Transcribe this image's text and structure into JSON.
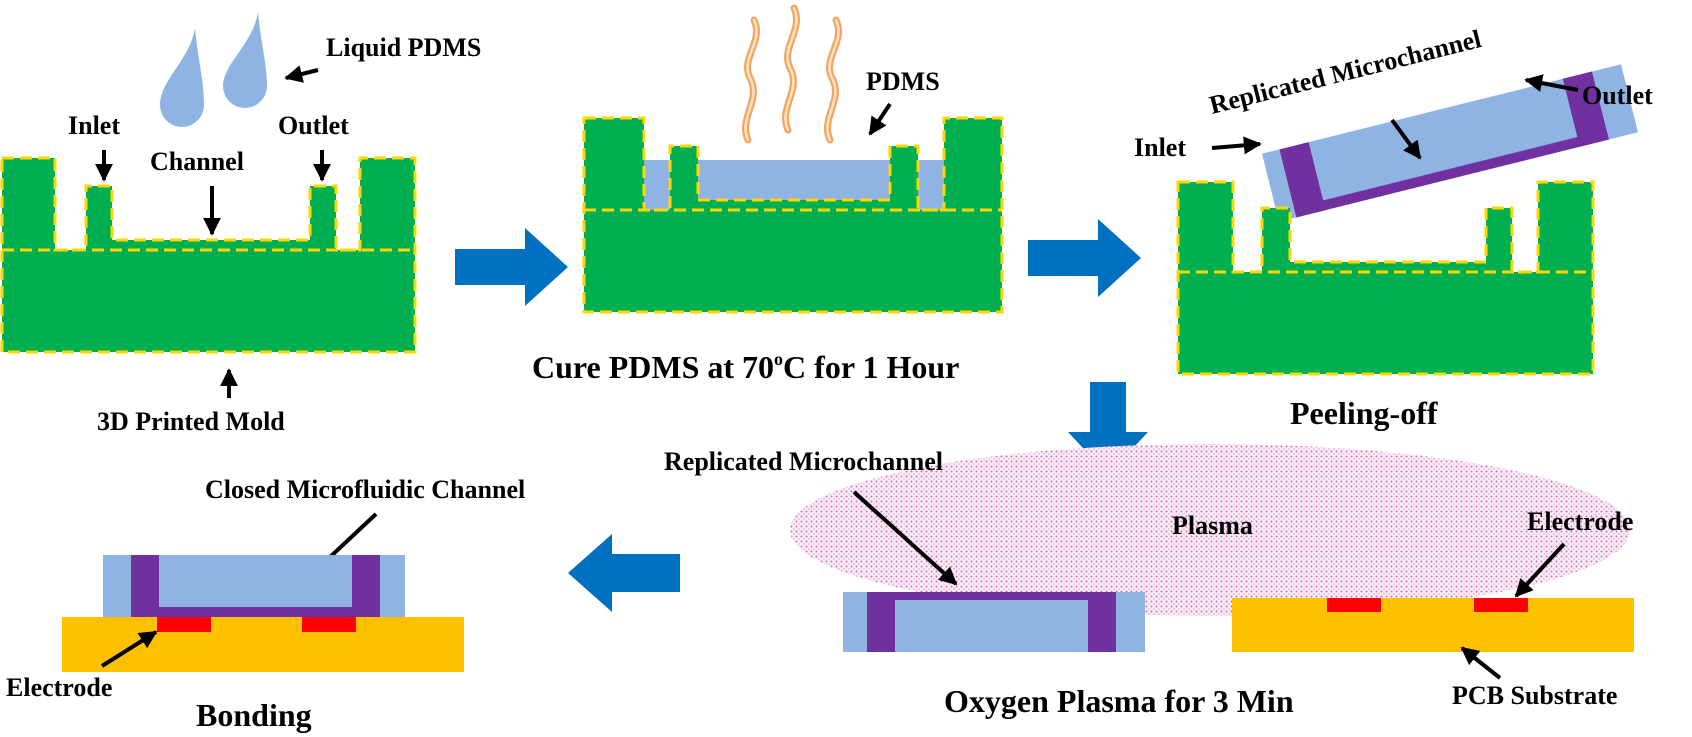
{
  "stage1": {
    "liquid_pdms": "Liquid PDMS",
    "inlet": "Inlet",
    "channel": "Channel",
    "outlet": "Outlet",
    "mold": "3D Printed Mold"
  },
  "stage2": {
    "pdms": "PDMS",
    "caption_main": "Cure PDMS at 70",
    "caption_sup": "o",
    "caption_end": "C for 1 Hour"
  },
  "stage3": {
    "replicated": "Replicated Microchannel",
    "inlet": "Inlet",
    "outlet": "Outlet",
    "caption": "Peeling-off"
  },
  "stage4": {
    "replicated": "Replicated Microchannel",
    "plasma": "Plasma",
    "electrode": "Electrode",
    "pcb": "PCB Substrate",
    "caption": "Oxygen Plasma for 3 Min"
  },
  "stage5": {
    "closed": "Closed Microfluidic Channel",
    "electrode": "Electrode",
    "caption": "Bonding"
  },
  "colors": {
    "mold": "#00b050",
    "mold_border": "#ffd700",
    "pdms": "#8fb4e3",
    "channel": "#7030a0",
    "pcb": "#ffc000",
    "electrode": "#ff0000",
    "process_arrow": "#0070c0",
    "plasma": "#e9a3cf"
  }
}
